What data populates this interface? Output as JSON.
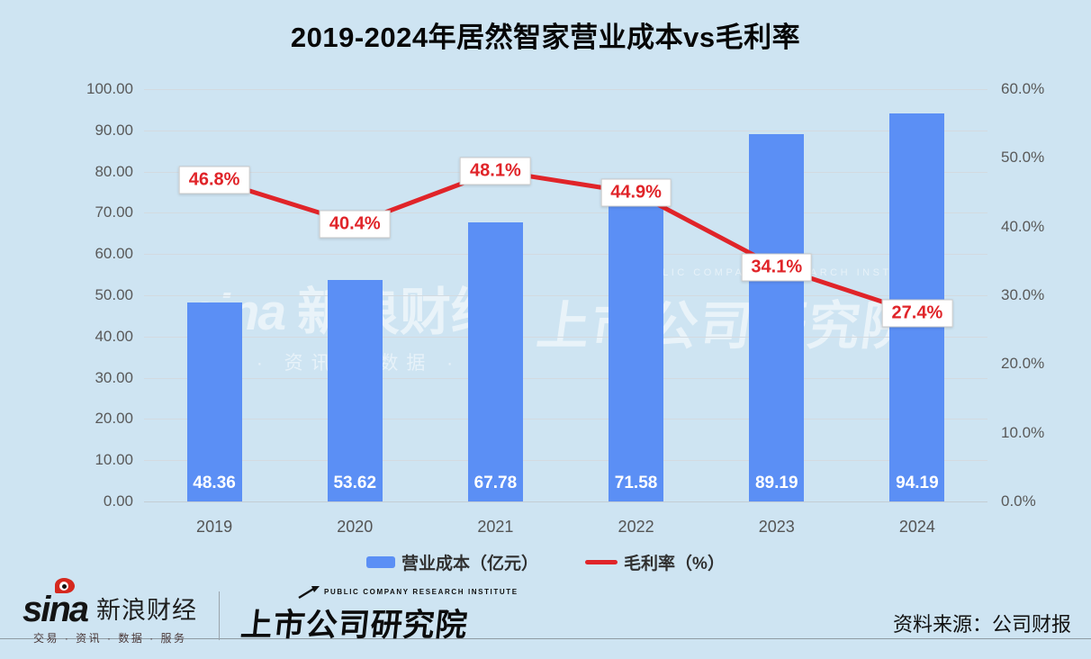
{
  "chart_data": {
    "type": "bar+line",
    "title": "2019-2024年居然智家营业成本vs毛利率",
    "categories": [
      "2019",
      "2020",
      "2021",
      "2022",
      "2023",
      "2024"
    ],
    "series": [
      {
        "name": "营业成本（亿元）",
        "type": "bar",
        "axis": "left",
        "color": "#5b8ff5",
        "values": [
          48.36,
          53.62,
          67.78,
          71.58,
          89.19,
          94.19
        ],
        "data_labels": [
          "48.36",
          "53.62",
          "67.78",
          "71.58",
          "89.19",
          "94.19"
        ]
      },
      {
        "name": "毛利率（%）",
        "type": "line",
        "axis": "right",
        "color": "#e02429",
        "values": [
          46.8,
          40.4,
          48.1,
          44.9,
          34.1,
          27.4
        ],
        "data_labels": [
          "46.8%",
          "40.4%",
          "48.1%",
          "44.9%",
          "34.1%",
          "27.4%"
        ]
      }
    ],
    "left_axis": {
      "min": 0,
      "max": 100,
      "ticks": [
        "100.00",
        "90.00",
        "80.00",
        "70.00",
        "60.00",
        "50.00",
        "40.00",
        "30.00",
        "20.00",
        "10.00",
        "0.00"
      ]
    },
    "right_axis": {
      "min": 0,
      "max": 60,
      "ticks": [
        "60.0%",
        "50.0%",
        "40.0%",
        "30.0%",
        "20.0%",
        "10.0%",
        "0.0%"
      ]
    },
    "grid": true,
    "legend_position": "bottom"
  },
  "watermark": {
    "left_logo": "sina",
    "left_brand": "新浪财经",
    "left_tagline": "交易 · 资讯 · 数据 · 服务",
    "right_small": "PUBLIC COMPANY RESEARCH INSTITUTE",
    "right_brand": "上市公司研究院"
  },
  "footer": {
    "sina_logo_text": "sina",
    "sina_brand": "新浪财经",
    "sina_tagline": "交易 · 资讯 · 数据 · 服务",
    "institute_small": "PUBLIC COMPANY RESEARCH INSTITUTE",
    "institute_brand": "上市公司研究院",
    "source": "资料来源：公司财报"
  },
  "colors": {
    "background": "#cee4f2",
    "bar": "#5b8ff5",
    "line": "#e02429",
    "axis_text": "#595959",
    "gridline": "#d3dae0"
  }
}
